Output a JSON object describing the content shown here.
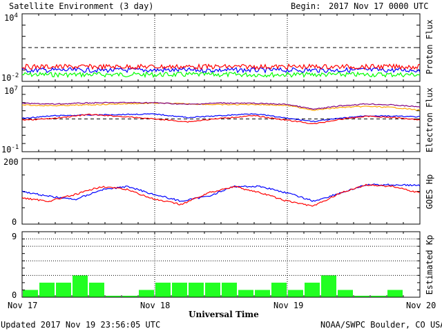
{
  "header": {
    "title": "Satellite Environment (3 day)",
    "begin_label": "Begin:",
    "begin_value": "2017 Nov 17 0000 UTC"
  },
  "footer": {
    "updated": "Updated 2017 Nov 19 23:56:05 UTC",
    "credit": "NOAA/SWPC Boulder, CO USA",
    "xlabel": "Universal Time"
  },
  "x_ticks": [
    "Nov 17",
    "Nov 18",
    "Nov 19",
    "Nov 20"
  ],
  "panels": {
    "proton": {
      "ylabel": "Proton Flux",
      "ytop_base": "10",
      "ytop_exp": "4",
      "ybot_base": "10",
      "ybot_exp": "-2"
    },
    "electron": {
      "ylabel": "Electron Flux",
      "ytop_base": "10",
      "ytop_exp": "7",
      "ybot_base": "10",
      "ybot_exp": "-1"
    },
    "hp": {
      "ylabel": "GOES Hp",
      "ytop": "200",
      "ybot": "0"
    },
    "kp": {
      "ylabel": "Estimated Kp",
      "ytop": "9",
      "ybot": "0"
    }
  },
  "colors": {
    "red": "#ff0000",
    "blue": "#0000ff",
    "green": "#00ff00",
    "orange": "#ffa500",
    "purple": "#800080",
    "kp_bar": "#22ff22"
  },
  "chart_data": [
    {
      "type": "line",
      "panel": "proton",
      "ylabel": "Proton Flux",
      "yscale": "log",
      "ylim": [
        0.01,
        10000
      ],
      "xlim_days": [
        0,
        3
      ],
      "threshold": 10,
      "series": [
        {
          "color": "#ff0000",
          "level": 0.2
        },
        {
          "color": "#0000ff",
          "level": 0.1
        },
        {
          "color": "#00ff00",
          "level": 0.04
        }
      ]
    },
    {
      "type": "line",
      "panel": "electron",
      "ylabel": "Electron Flux",
      "yscale": "log",
      "ylim": [
        0.1,
        10000000
      ],
      "threshold": 1000,
      "x_days": [
        0,
        0.25,
        0.5,
        0.75,
        1.0,
        1.25,
        1.5,
        1.75,
        2.0,
        2.2,
        2.4,
        2.6,
        2.8,
        3.0
      ],
      "series": [
        {
          "color": "#ffa500",
          "values": [
            50000,
            42000,
            52000,
            70000,
            85000,
            70000,
            55000,
            60000,
            45000,
            12000,
            25000,
            35000,
            25000,
            12000
          ]
        },
        {
          "color": "#800080",
          "values": [
            80000,
            65000,
            90000,
            100000,
            95000,
            60000,
            90000,
            80000,
            60000,
            15000,
            40000,
            70000,
            50000,
            30000
          ]
        },
        {
          "color": "#0000ff",
          "values": [
            1200,
            2500,
            3000,
            3500,
            4000,
            1500,
            2500,
            4500,
            1200,
            500,
            1200,
            2500,
            2200,
            1800
          ]
        },
        {
          "color": "#ff0000",
          "values": [
            700,
            1200,
            3500,
            2000,
            1000,
            450,
            1200,
            2500,
            700,
            250,
            900,
            2200,
            1500,
            800
          ]
        }
      ]
    },
    {
      "type": "line",
      "panel": "hp",
      "ylabel": "GOES Hp",
      "ylim": [
        0,
        200
      ],
      "x_days": [
        0,
        0.2,
        0.4,
        0.6,
        0.8,
        1.0,
        1.2,
        1.4,
        1.6,
        1.8,
        2.0,
        2.2,
        2.4,
        2.6,
        2.8,
        3.0
      ],
      "series": [
        {
          "color": "#0000ff",
          "values": [
            100,
            85,
            75,
            105,
            115,
            90,
            70,
            85,
            115,
            115,
            95,
            70,
            95,
            120,
            120,
            118
          ]
        },
        {
          "color": "#ff0000",
          "values": [
            80,
            70,
            90,
            115,
            105,
            75,
            60,
            95,
            115,
            95,
            70,
            55,
            95,
            120,
            115,
            95
          ]
        }
      ]
    },
    {
      "type": "bar",
      "panel": "kp",
      "ylabel": "Estimated Kp",
      "ylim": [
        0,
        9
      ],
      "interval_hours": 3,
      "values": [
        1,
        2,
        2,
        3,
        2,
        0.2,
        0.2,
        1,
        2,
        2,
        2,
        2,
        2,
        1,
        1,
        2,
        1,
        2,
        3,
        1,
        0.2,
        0.2,
        1,
        0
      ]
    }
  ]
}
